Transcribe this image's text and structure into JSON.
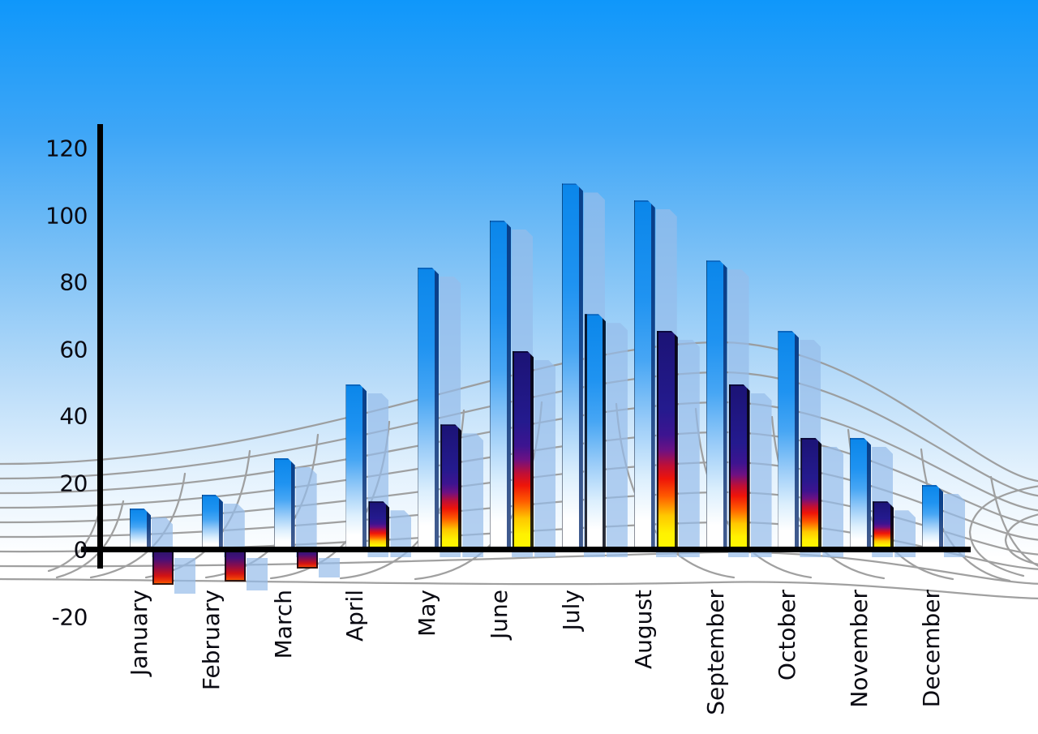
{
  "chart_data": {
    "type": "bar",
    "title": "",
    "xlabel": "",
    "ylabel": "",
    "categories": [
      "January",
      "February",
      "March",
      "April",
      "May",
      "June",
      "July",
      "August",
      "September",
      "October",
      "November",
      "December"
    ],
    "series": [
      {
        "name": "blue-gradient-bars",
        "values": [
          12,
          16,
          27,
          49,
          84,
          98,
          109,
          104,
          86,
          65,
          33,
          19
        ]
      },
      {
        "name": "rainbow-gradient-bars",
        "values": [
          -10,
          -9,
          -5,
          14,
          37,
          59,
          70,
          65,
          49,
          33,
          14,
          null
        ]
      }
    ],
    "series2_styles": [
      "rainbow",
      "rainbow",
      "rainbow",
      "rainbow",
      "rainbow",
      "rainbow",
      "blue",
      "rainbow",
      "rainbow",
      "rainbow",
      "rainbow",
      "none"
    ],
    "y_axis": {
      "min": -20,
      "max": 120,
      "tick_step": 20,
      "tick_values": [
        120,
        100,
        80,
        60,
        40,
        20,
        0,
        -20
      ],
      "tick_labels": [
        "120",
        "100",
        "80",
        "60",
        "40",
        "20",
        "0",
        "-20"
      ]
    },
    "legend_position": "none",
    "grid": "curved gray perspective net behind bars",
    "bar_shadows": "translucent light-blue copy offset right and down"
  },
  "colors": {
    "sky_top": "#0f97fa",
    "sky_bottom": "#ffffff",
    "bar_blue_top": "#0a86ea",
    "bar_blue_bottom": "#ffffff",
    "rainbow_top": "#1b1375",
    "rainbow_mid": "#ee1409",
    "rainbow_bottom": "#fff700",
    "shadow_bar": "rgba(149,188,234,0.70)",
    "grid_line": "#999999",
    "axis_line": "#000000",
    "label_text": "#0a0a12"
  }
}
